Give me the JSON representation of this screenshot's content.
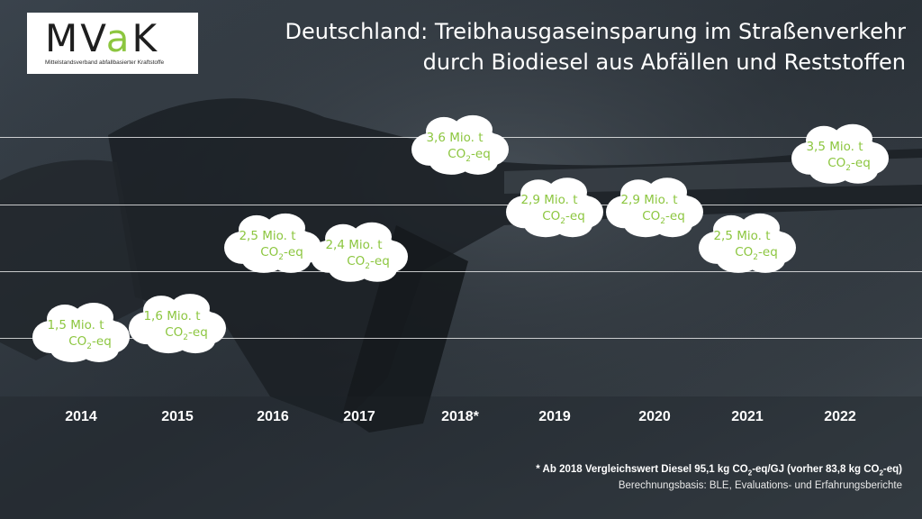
{
  "logo": {
    "word_start": "MV",
    "word_accent": "a",
    "word_end": "K",
    "subtitle": "Mittelstandsverband abfallbasierter Kraftstoffe"
  },
  "title": {
    "line1": "Deutschland: Treibhausgaseinsparung im Straßenverkehr",
    "line2": "durch Biodiesel aus Abfällen und Reststoffen"
  },
  "colors": {
    "accent": "#8cc63f",
    "cloud": "#ffffff",
    "text": "#ffffff"
  },
  "chart_data": {
    "type": "scatter",
    "title": "Deutschland: Treibhausgaseinsparung im Straßenverkehr durch Biodiesel aus Abfällen und Reststoffen",
    "categories": [
      "2014",
      "2015",
      "2016",
      "2017",
      "2018*",
      "2019",
      "2020",
      "2021",
      "2022"
    ],
    "values": [
      1.5,
      1.6,
      2.5,
      2.4,
      3.6,
      2.9,
      2.9,
      2.5,
      3.5
    ],
    "labels": [
      "1,5 Mio. t",
      "1,6 Mio. t",
      "2,5 Mio. t",
      "2,4 Mio. t",
      "3,6 Mio. t",
      "2,9 Mio. t",
      "2,9 Mio. t",
      "2,5 Mio. t",
      "3,5 Mio. t"
    ],
    "unit_main": "CO",
    "unit_sub": "2",
    "unit_tail": "-eq",
    "ylim": [
      1,
      4
    ],
    "grid": true
  },
  "footnote": {
    "text_a": "* Ab 2018 Vergleichswert Diesel 95,1 kg CO",
    "sub_a": "2",
    "text_b": "-eq/GJ (vorher 83,8 kg CO",
    "sub_b": "2",
    "text_c": "-eq)"
  },
  "source": "Berechnungsbasis: BLE, Evaluations- und Erfahrungsberichte"
}
